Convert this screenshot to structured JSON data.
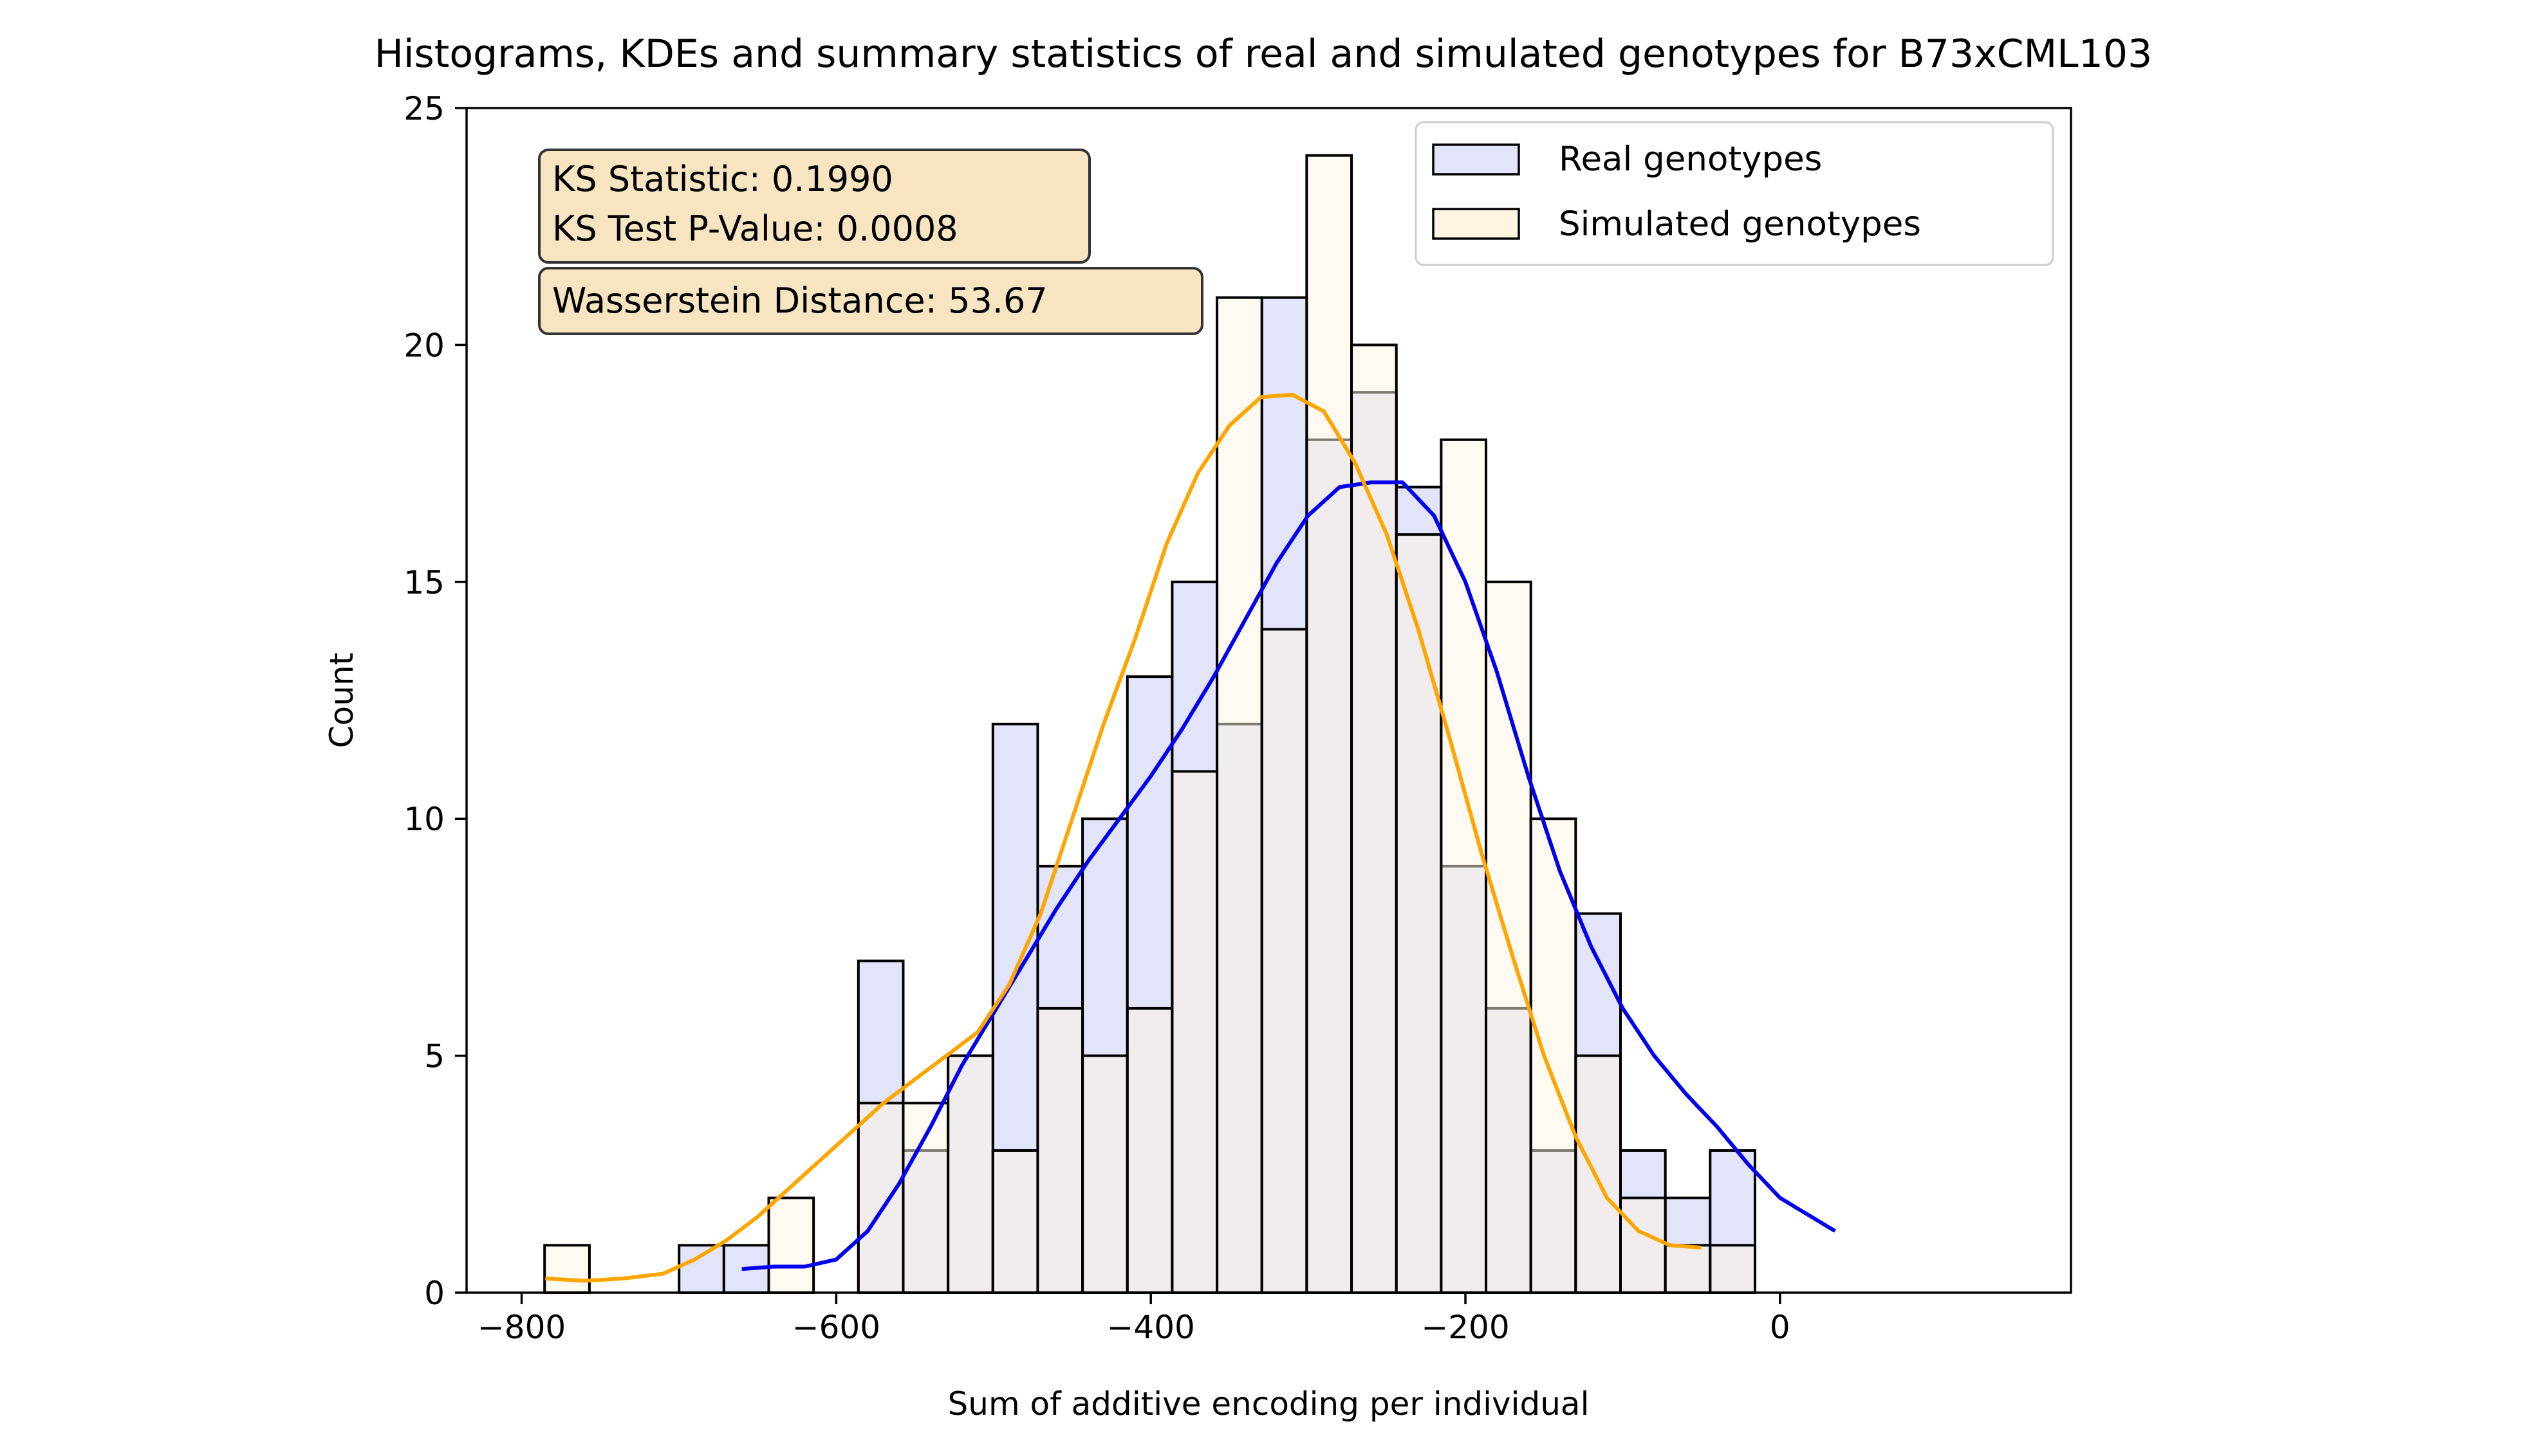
{
  "chart_data": {
    "type": "bar",
    "title": "Histograms, KDEs and summary statistics of real and simulated genotypes for B73xCML103",
    "xlabel": "Sum of additive encoding per individual",
    "ylabel": "Count",
    "xlim": [
      -835,
      185
    ],
    "ylim": [
      0,
      25
    ],
    "xticks": [
      -800,
      -600,
      -400,
      -200,
      0
    ],
    "xtick_labels": [
      "−800",
      "−600",
      "−400",
      "−200",
      "0"
    ],
    "yticks": [
      0,
      5,
      10,
      15,
      20,
      25
    ],
    "ytick_labels": [
      "0",
      "5",
      "10",
      "15",
      "20",
      "25"
    ],
    "grid": false,
    "legend_position": "top-right",
    "bin_edges": [
      -785.4,
      -756.9,
      -728.4,
      -699.9,
      -671.4,
      -642.9,
      -614.4,
      -585.9,
      -557.4,
      -528.9,
      -500.4,
      -471.9,
      -443.4,
      -414.9,
      -386.4,
      -357.9,
      -329.4,
      -300.9,
      -272.4,
      -243.9,
      -215.4,
      -186.9,
      -158.4,
      -129.9,
      -101.4,
      -72.9,
      -44.4,
      -15.9,
      12.6,
      41.1
    ],
    "series": [
      {
        "name": "Real genotypes",
        "fill_color": "#e2e4fa",
        "kde_color": "#0000ee",
        "counts": [
          0,
          0,
          0,
          1,
          1,
          0,
          0,
          7,
          3,
          5,
          12,
          9,
          10,
          13,
          15,
          12,
          21,
          18,
          19,
          17,
          9,
          6,
          3,
          8,
          3,
          2,
          3,
          0,
          0
        ],
        "kde": {
          "x": [
            -660,
            -640,
            -620,
            -600,
            -580,
            -560,
            -540,
            -520,
            -500,
            -480,
            -460,
            -440,
            -420,
            -400,
            -380,
            -360,
            -340,
            -320,
            -300,
            -280,
            -260,
            -240,
            -220,
            -200,
            -180,
            -160,
            -140,
            -120,
            -100,
            -80,
            -60,
            -40,
            -20,
            0,
            20,
            35
          ],
          "y": [
            0.5,
            0.55,
            0.55,
            0.7,
            1.3,
            2.3,
            3.5,
            4.8,
            5.9,
            7.0,
            8.1,
            9.1,
            10.0,
            10.9,
            11.9,
            13.0,
            14.2,
            15.4,
            16.4,
            17.0,
            17.1,
            17.1,
            16.4,
            15.0,
            13.1,
            10.9,
            8.9,
            7.3,
            6.0,
            5.0,
            4.2,
            3.5,
            2.7,
            2.0,
            1.6,
            1.3
          ]
        }
      },
      {
        "name": "Simulated genotypes",
        "fill_color": "#fff5e3",
        "kde_color": "#ffa500",
        "counts": [
          1,
          0,
          0,
          0,
          0,
          2,
          0,
          4,
          4,
          5,
          3,
          6,
          5,
          6,
          11,
          21,
          14,
          24,
          20,
          16,
          18,
          15,
          10,
          5,
          2,
          1,
          1,
          0,
          0
        ],
        "kde": {
          "x": [
            -785,
            -760,
            -735,
            -710,
            -690,
            -670,
            -650,
            -630,
            -610,
            -590,
            -570,
            -550,
            -530,
            -510,
            -490,
            -470,
            -450,
            -430,
            -410,
            -390,
            -370,
            -350,
            -330,
            -310,
            -290,
            -270,
            -250,
            -230,
            -210,
            -190,
            -170,
            -150,
            -130,
            -110,
            -90,
            -70,
            -50
          ],
          "y": [
            0.3,
            0.25,
            0.3,
            0.4,
            0.7,
            1.1,
            1.6,
            2.2,
            2.8,
            3.4,
            4.0,
            4.5,
            5.0,
            5.5,
            6.5,
            8.0,
            10.0,
            12.0,
            13.8,
            15.8,
            17.3,
            18.3,
            18.9,
            18.95,
            18.6,
            17.5,
            16.0,
            14.0,
            11.7,
            9.3,
            7.1,
            5.0,
            3.3,
            2.0,
            1.3,
            1.0,
            0.95
          ]
        }
      }
    ],
    "annotations": {
      "ks_line1": "KS Statistic: 0.1990",
      "ks_line2": "KS Test P-Value: 0.0008",
      "wasserstein": "Wasserstein Distance: 53.67",
      "box_fill": "#f5deb3"
    }
  }
}
